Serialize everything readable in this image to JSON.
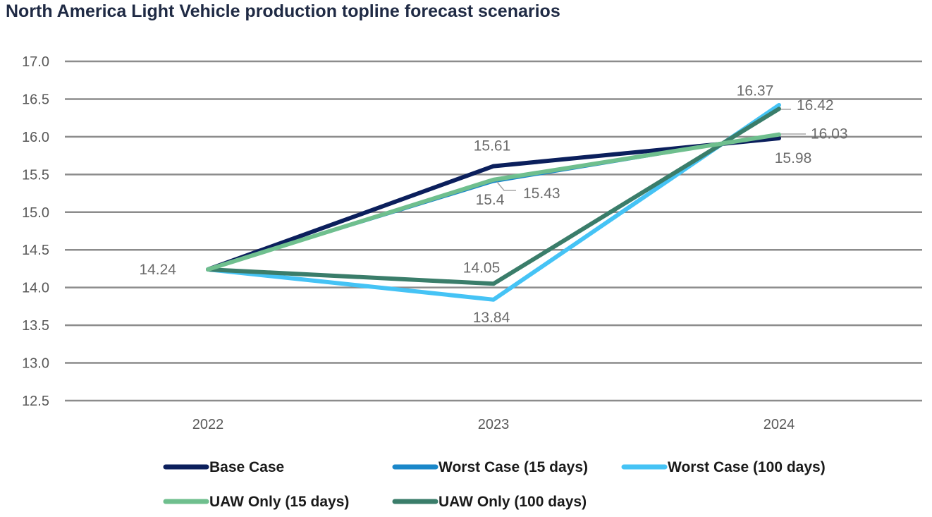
{
  "title": "North America Light Vehicle production topline forecast scenarios",
  "chart_data": {
    "type": "line",
    "title": "North America Light Vehicle production topline forecast scenarios",
    "xlabel": "",
    "ylabel": "",
    "categories": [
      "2022",
      "2023",
      "2024"
    ],
    "ylim": [
      12.5,
      17.0
    ],
    "ytick_step": 0.5,
    "y_tick_labels": [
      "12.5",
      "13.0",
      "13.5",
      "14.0",
      "14.5",
      "15.0",
      "15.5",
      "16.0",
      "16.5",
      "17.0"
    ],
    "grid": true,
    "legend_position": "bottom",
    "series": [
      {
        "name": "Base Case",
        "values": [
          14.24,
          15.61,
          15.98
        ],
        "color": "#0b1f5c",
        "labels": [
          "",
          "15.61",
          "15.98"
        ]
      },
      {
        "name": "Worst Case (15 days)",
        "values": [
          14.24,
          15.4,
          16.03
        ],
        "color": "#1a87c9",
        "labels": [
          "",
          "15.4",
          "16.03"
        ]
      },
      {
        "name": "Worst Case (100 days)",
        "values": [
          14.24,
          13.84,
          16.42
        ],
        "color": "#45c3f5",
        "labels": [
          "",
          "13.84",
          "16.42"
        ]
      },
      {
        "name": "UAW Only (15 days)",
        "values": [
          14.24,
          15.43,
          16.03
        ],
        "color": "#6fbf8e",
        "labels": [
          "",
          "15.43",
          ""
        ]
      },
      {
        "name": "UAW Only (100 days)",
        "values": [
          14.24,
          14.05,
          16.37
        ],
        "color": "#3a7d6a",
        "labels": [
          "14.24",
          "14.05",
          "16.37"
        ]
      }
    ]
  }
}
